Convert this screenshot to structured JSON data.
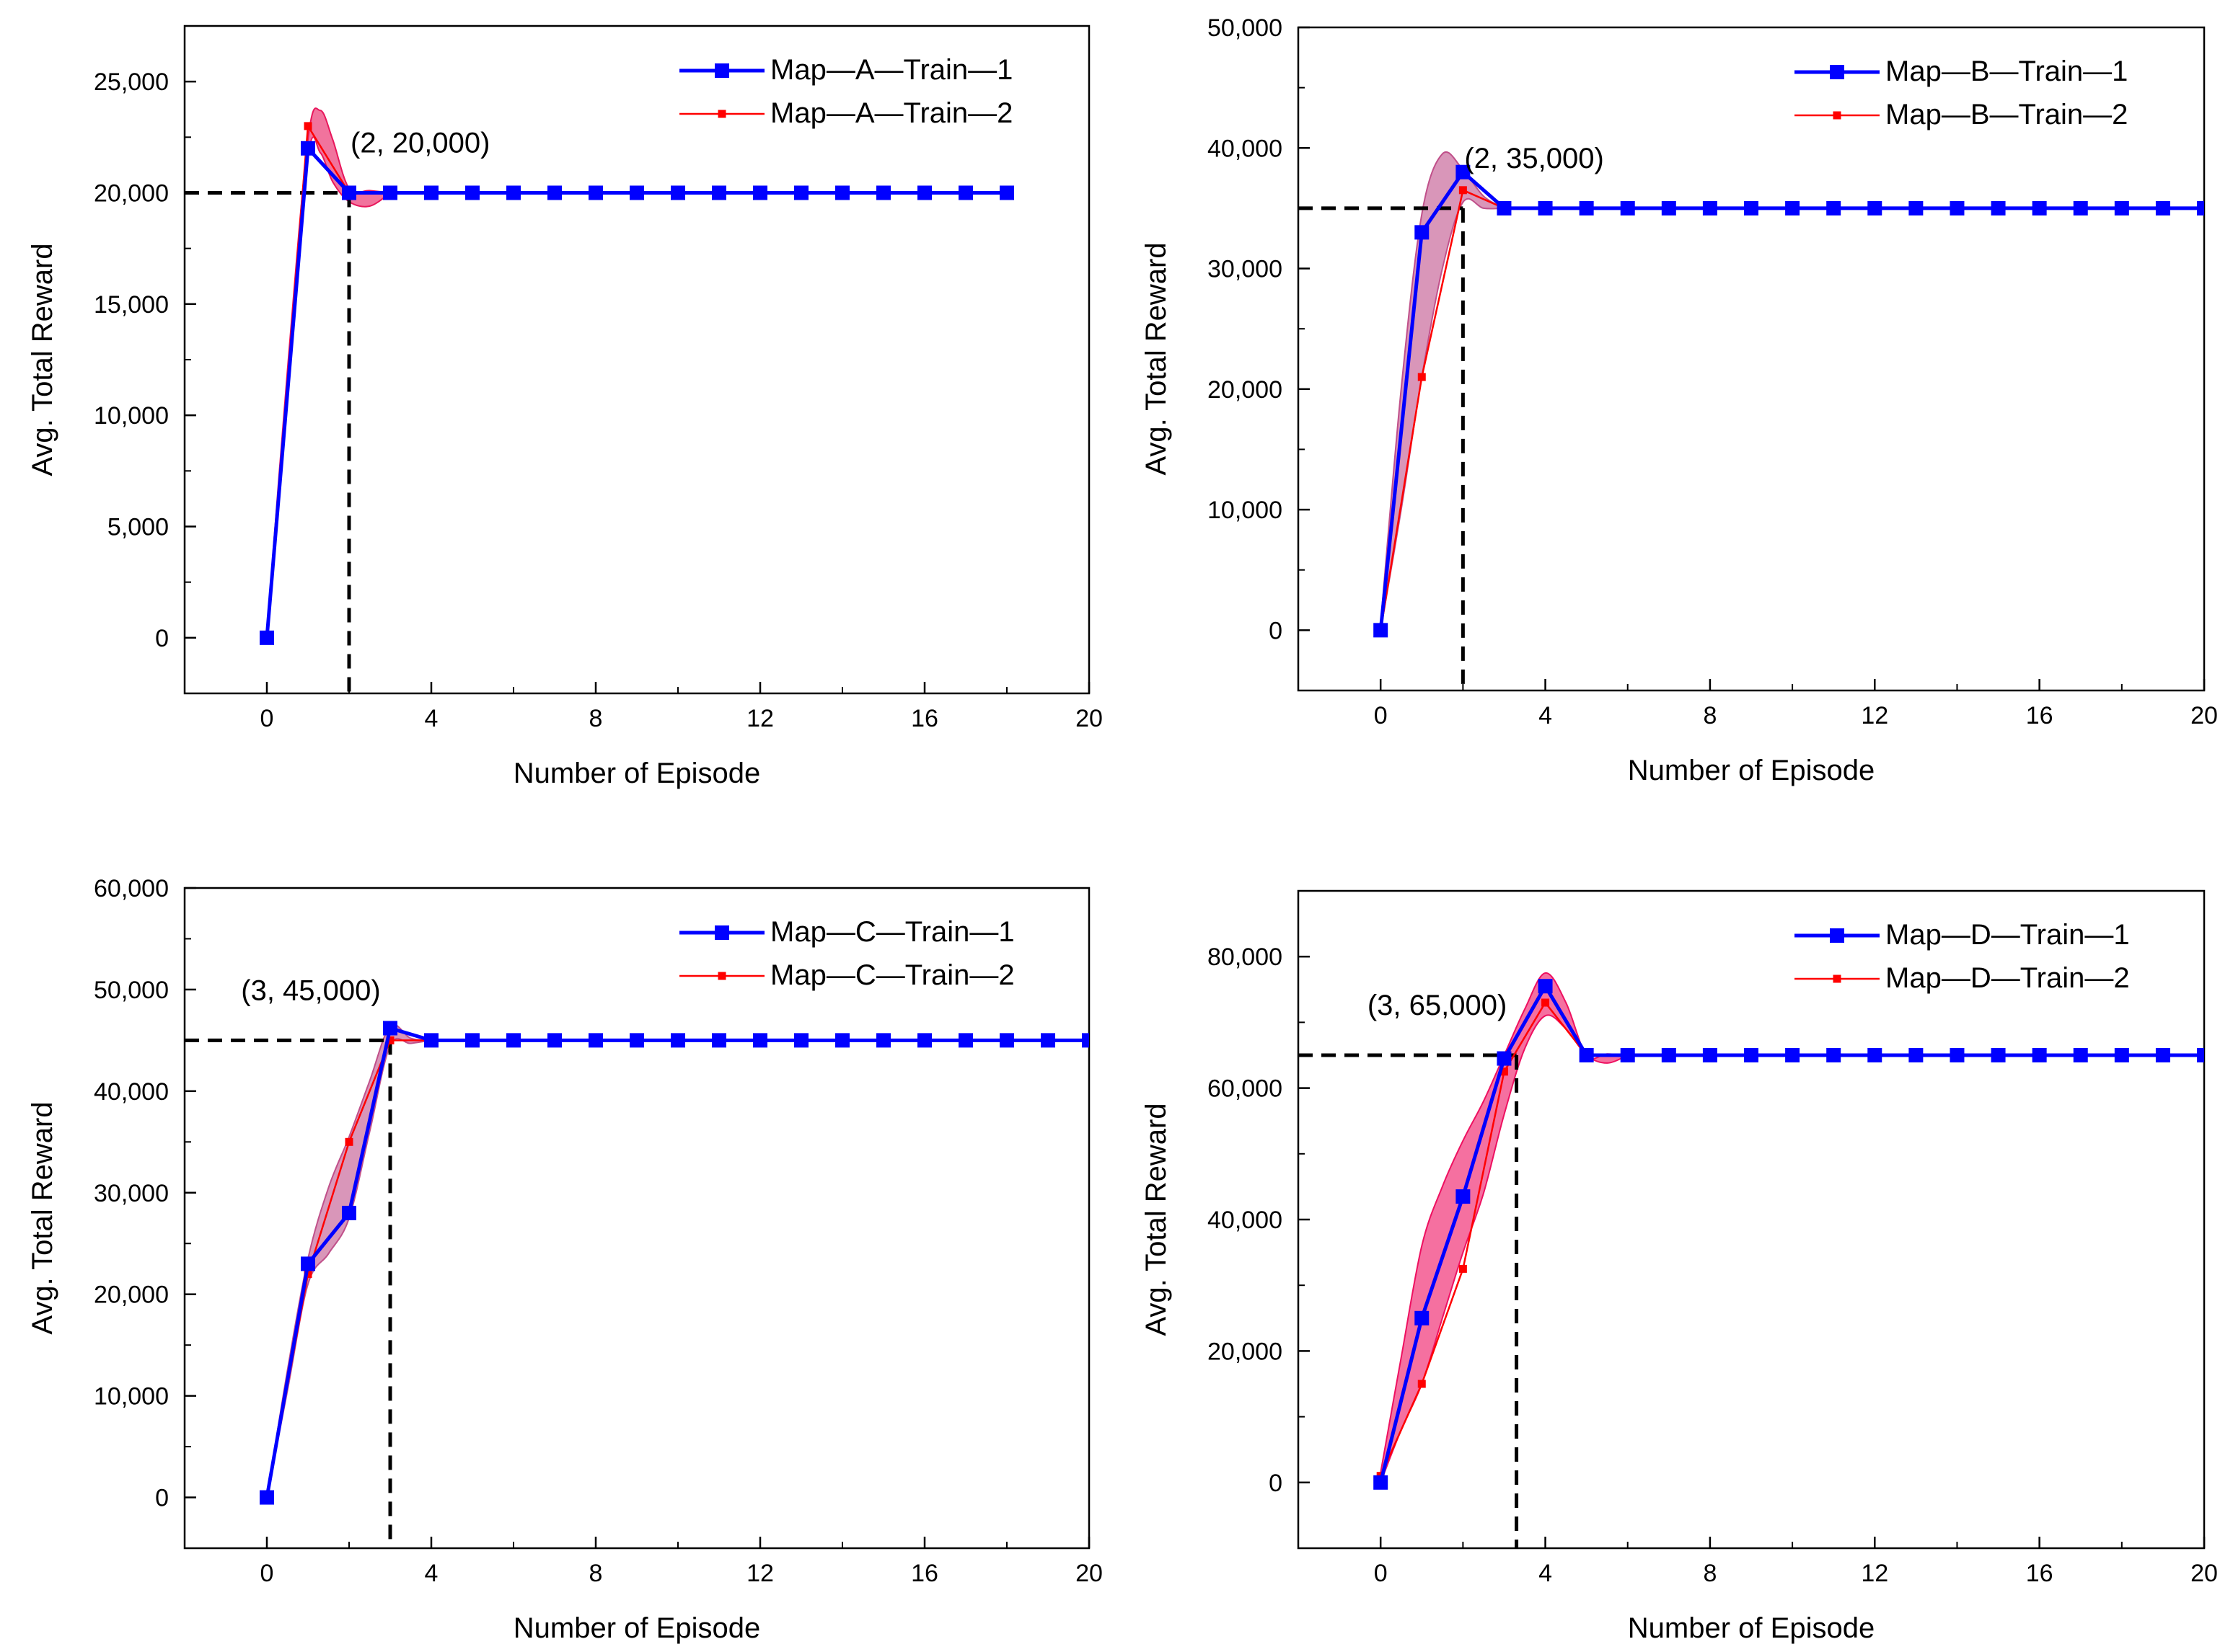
{
  "chart_data": [
    {
      "type": "line",
      "panel": "top-left",
      "xlabel": "Number of Episode",
      "ylabel": "Avg. Total Reward",
      "xlim": [
        -2,
        20
      ],
      "ylim": [
        -2500,
        27500
      ],
      "xticks": [
        0,
        4,
        8,
        12,
        16,
        20
      ],
      "yticks": [
        0,
        5000,
        10000,
        15000,
        20000,
        25000
      ],
      "ytick_labels": [
        "0",
        "5,000",
        "10,000",
        "15,000",
        "20,000",
        "25,000"
      ],
      "legend_position": "top-right",
      "series": [
        {
          "name": "Map—A—Train—1",
          "color": "#0000ff",
          "marker": "square-large",
          "x": [
            0,
            1,
            2,
            3,
            4,
            5,
            6,
            7,
            8,
            9,
            10,
            11,
            12,
            13,
            14,
            15,
            16,
            17,
            18
          ],
          "values": [
            0,
            22000,
            20000,
            20000,
            20000,
            20000,
            20000,
            20000,
            20000,
            20000,
            20000,
            20000,
            20000,
            20000,
            20000,
            20000,
            20000,
            20000,
            20000
          ]
        },
        {
          "name": "Map—A—Train—2",
          "color": "#ff0000",
          "marker": "square-small",
          "x": [
            0,
            1,
            2,
            3,
            4,
            5,
            6,
            7,
            8,
            9,
            10,
            11,
            12,
            13,
            14,
            15,
            16,
            17,
            18
          ],
          "values": [
            0,
            23000,
            20000,
            20000,
            20000,
            20000,
            20000,
            20000,
            20000,
            20000,
            20000,
            20000,
            20000,
            20000,
            20000,
            20000,
            20000,
            20000,
            20000
          ]
        }
      ],
      "band": {
        "color": "#e8165b",
        "x": [
          0,
          0.5,
          1,
          1.3,
          1.6,
          2,
          2.5,
          3
        ],
        "upper": [
          200,
          12000,
          22400,
          23700,
          22400,
          20200,
          20100,
          20000
        ],
        "lower": [
          0,
          11000,
          21600,
          21800,
          20500,
          19600,
          19400,
          20000
        ]
      },
      "annotation": {
        "text": "(2, 20,000)",
        "x": 2,
        "y": 20000
      },
      "guide_lines": {
        "x": 2,
        "y": 20000
      }
    },
    {
      "type": "line",
      "panel": "top-right",
      "xlabel": "Number of Episode",
      "ylabel": "Avg. Total Reward",
      "xlim": [
        -2,
        20
      ],
      "ylim": [
        -5000,
        50000
      ],
      "xticks": [
        0,
        4,
        8,
        12,
        16,
        20
      ],
      "yticks": [
        0,
        10000,
        20000,
        30000,
        40000,
        50000
      ],
      "ytick_labels": [
        "0",
        "10,000",
        "20,000",
        "30,000",
        "40,000",
        "50,000"
      ],
      "legend_position": "top-right",
      "series": [
        {
          "name": "Map—B—Train—1",
          "color": "#0000ff",
          "marker": "square-large",
          "x": [
            0,
            1,
            2,
            3,
            4,
            5,
            6,
            7,
            8,
            9,
            10,
            11,
            12,
            13,
            14,
            15,
            16,
            17,
            18,
            19,
            20
          ],
          "values": [
            0,
            33000,
            38000,
            35000,
            35000,
            35000,
            35000,
            35000,
            35000,
            35000,
            35000,
            35000,
            35000,
            35000,
            35000,
            35000,
            35000,
            35000,
            35000,
            35000,
            35000
          ]
        },
        {
          "name": "Map—B—Train—2",
          "color": "#ff0000",
          "marker": "square-small",
          "x": [
            0,
            1,
            2,
            3,
            4,
            5,
            6,
            7,
            8,
            9,
            10,
            11,
            12,
            13,
            14,
            15,
            16,
            17,
            18,
            19,
            20
          ],
          "values": [
            0,
            21000,
            36500,
            35000,
            35000,
            35000,
            35000,
            35000,
            35000,
            35000,
            35000,
            35000,
            35000,
            35000,
            35000,
            35000,
            35000,
            35000,
            35000,
            35000,
            35000
          ]
        }
      ],
      "band": {
        "color": "#c0508a",
        "x": [
          0,
          0.5,
          1,
          1.5,
          2,
          2.5,
          3
        ],
        "upper": [
          500,
          20000,
          34500,
          39500,
          38200,
          36000,
          35000
        ],
        "lower": [
          0,
          10000,
          21000,
          30000,
          35500,
          35000,
          35000
        ]
      },
      "annotation": {
        "text": "(2, 35,000)",
        "x": 2,
        "y": 35000
      },
      "guide_lines": {
        "x": 2,
        "y": 35000
      }
    },
    {
      "type": "line",
      "panel": "bottom-left",
      "xlabel": "Number of Episode",
      "ylabel": "Avg. Total Reward",
      "xlim": [
        -2,
        20
      ],
      "ylim": [
        -5000,
        60000
      ],
      "xticks": [
        0,
        4,
        8,
        12,
        16,
        20
      ],
      "yticks": [
        0,
        10000,
        20000,
        30000,
        40000,
        50000,
        60000
      ],
      "ytick_labels": [
        "0",
        "10,000",
        "20,000",
        "30,000",
        "40,000",
        "50,000",
        "60,000"
      ],
      "legend_position": "top-right",
      "series": [
        {
          "name": "Map—C—Train—1",
          "color": "#0000ff",
          "marker": "square-large",
          "x": [
            0,
            1,
            2,
            3,
            4,
            5,
            6,
            7,
            8,
            9,
            10,
            11,
            12,
            13,
            14,
            15,
            16,
            17,
            18,
            19,
            20
          ],
          "values": [
            0,
            23000,
            28000,
            46200,
            45000,
            45000,
            45000,
            45000,
            45000,
            45000,
            45000,
            45000,
            45000,
            45000,
            45000,
            45000,
            45000,
            45000,
            45000,
            45000,
            45000
          ]
        },
        {
          "name": "Map—C—Train—2",
          "color": "#ff0000",
          "marker": "square-small",
          "x": [
            0,
            1,
            2,
            3,
            4,
            5,
            6,
            7,
            8,
            9,
            10,
            11,
            12,
            13,
            14,
            15,
            16,
            17,
            18,
            19,
            20
          ],
          "values": [
            0,
            22000,
            35000,
            45000,
            45000,
            45000,
            45000,
            45000,
            45000,
            45000,
            45000,
            45000,
            45000,
            45000,
            45000,
            45000,
            45000,
            45000,
            45000,
            45000,
            45000
          ]
        }
      ],
      "band": {
        "color": "#c0508a",
        "x": [
          0,
          0.5,
          1,
          1.5,
          2,
          2.5,
          3,
          3.5,
          4
        ],
        "upper": [
          0,
          12500,
          23500,
          30500,
          35500,
          41000,
          46400,
          45200,
          45000
        ],
        "lower": [
          0,
          10500,
          21000,
          24000,
          27500,
          36000,
          44500,
          44700,
          45000
        ]
      },
      "annotation": {
        "text": "(3, 45,000)",
        "x": 3,
        "y": 45000
      },
      "guide_lines": {
        "x": 3,
        "y": 45000
      }
    },
    {
      "type": "line",
      "panel": "bottom-right",
      "xlabel": "Number of Episode",
      "ylabel": "Avg. Total Reward",
      "xlim": [
        -2,
        20
      ],
      "ylim": [
        -10000,
        90000
      ],
      "xticks": [
        0,
        4,
        8,
        12,
        16,
        20
      ],
      "yticks": [
        0,
        20000,
        40000,
        60000,
        80000
      ],
      "ytick_labels": [
        "0",
        "20,000",
        "40,000",
        "60,000",
        "80,000"
      ],
      "legend_position": "top-right",
      "series": [
        {
          "name": "Map—D—Train—1",
          "color": "#0000ff",
          "marker": "square-large",
          "x": [
            0,
            1,
            2,
            3,
            4,
            5,
            6,
            7,
            8,
            9,
            10,
            11,
            12,
            13,
            14,
            15,
            16,
            17,
            18,
            19,
            20
          ],
          "values": [
            0,
            25000,
            43500,
            64500,
            75500,
            65000,
            65000,
            65000,
            65000,
            65000,
            65000,
            65000,
            65000,
            65000,
            65000,
            65000,
            65000,
            65000,
            65000,
            65000,
            65000
          ]
        },
        {
          "name": "Map—D—Train—2",
          "color": "#ff0000",
          "marker": "square-small",
          "x": [
            0,
            1,
            2,
            3,
            4,
            5,
            6,
            7,
            8,
            9,
            10,
            11,
            12,
            13,
            14,
            15,
            16,
            17,
            18,
            19,
            20
          ],
          "values": [
            1000,
            15000,
            32500,
            62500,
            73000,
            65000,
            65000,
            65000,
            65000,
            65000,
            65000,
            65000,
            65000,
            65000,
            65000,
            65000,
            65000,
            65000,
            65000,
            65000,
            65000
          ]
        }
      ],
      "band": {
        "color": "#ee1060",
        "x": [
          0,
          0.5,
          1,
          1.5,
          2,
          2.5,
          3,
          3.5,
          4,
          4.5,
          5,
          5.5,
          6
        ],
        "upper": [
          1500,
          19000,
          36000,
          45000,
          52000,
          58000,
          65000,
          72000,
          77500,
          73000,
          65000,
          65200,
          65000
        ],
        "lower": [
          0,
          8000,
          15000,
          25000,
          35000,
          44000,
          56000,
          66000,
          71000,
          69000,
          65000,
          63800,
          65000
        ]
      },
      "annotation": {
        "text": "(3, 65,000)",
        "x": 3.3,
        "y": 65000
      },
      "guide_lines": {
        "x": 3.3,
        "y": 65000
      }
    }
  ]
}
